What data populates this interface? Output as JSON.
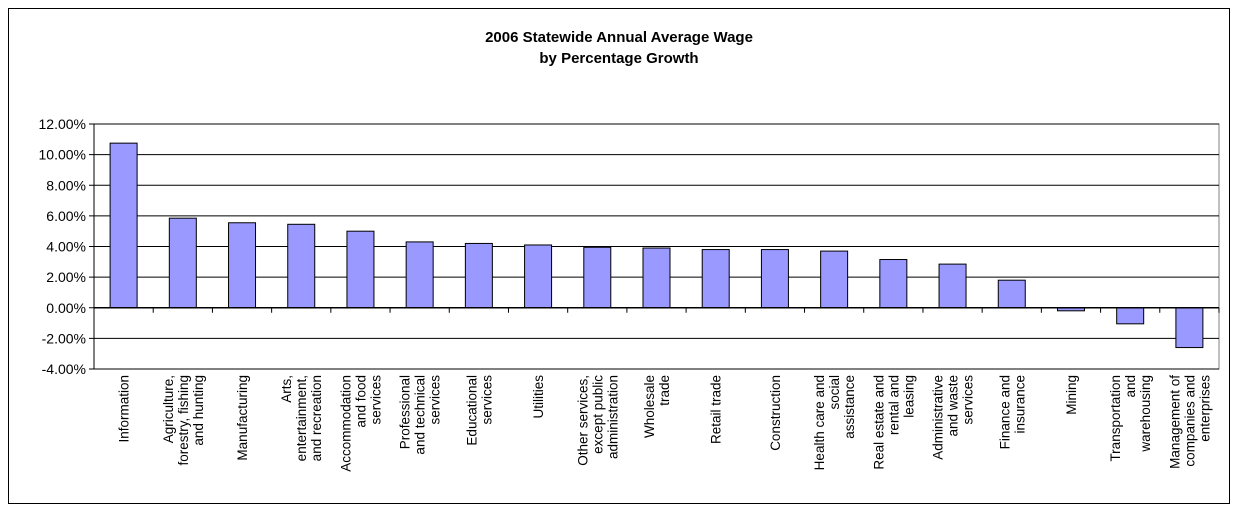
{
  "chart_data": {
    "type": "bar",
    "title": "2006 Statewide Annual Average Wage",
    "subtitle": "by Percentage Growth",
    "xlabel": "",
    "ylabel": "",
    "ylim": [
      -4,
      12
    ],
    "y_ticks": [
      "12.00%",
      "10.00%",
      "8.00%",
      "6.00%",
      "4.00%",
      "2.00%",
      "0.00%",
      "-2.00%",
      "-4.00%"
    ],
    "y_tick_values": [
      12,
      10,
      8,
      6,
      4,
      2,
      0,
      -2,
      -4
    ],
    "grid": true,
    "legend": "none",
    "bar_color": "#9999ff",
    "categories": [
      "Information",
      "Agriculture, forestry, fishing and hunting",
      "Manufacturing",
      "Arts, entertainment, and recreation",
      "Accommodation and food services",
      "Professional and technical services",
      "Educational services",
      "Utilities",
      "Other services, except public administration",
      "Wholesale trade",
      "Retail trade",
      "Construction",
      "Health care and social assistance",
      "Real estate and rental and leasing",
      "Administrative and waste services",
      "Finance and insurance",
      "Mining",
      "Transportation and warehousing",
      "Management of companies and enterprises"
    ],
    "category_lines": [
      [
        "Information"
      ],
      [
        "Agriculture,",
        "forestry, fishing",
        "and hunting"
      ],
      [
        "Manufacturing"
      ],
      [
        "Arts,",
        "entertainment,",
        "and recreation"
      ],
      [
        "Accommodation",
        "and food",
        "services"
      ],
      [
        "Professional",
        "and technical",
        "services"
      ],
      [
        "Educational",
        "services"
      ],
      [
        "Utilities"
      ],
      [
        "Other services,",
        "except public",
        "administration"
      ],
      [
        "Wholesale",
        "trade"
      ],
      [
        "Retail trade"
      ],
      [
        "Construction"
      ],
      [
        "Health care and",
        "social",
        "assistance"
      ],
      [
        "Real estate and",
        "rental and",
        "leasing"
      ],
      [
        "Administrative",
        "and waste",
        "services"
      ],
      [
        "Finance and",
        "insurance"
      ],
      [
        "Mining"
      ],
      [
        "Transportation",
        "and",
        "warehousing"
      ],
      [
        "Management of",
        "companies and",
        "enterprises"
      ]
    ],
    "values": [
      10.75,
      5.85,
      5.55,
      5.45,
      5.0,
      4.3,
      4.2,
      4.1,
      3.95,
      3.9,
      3.8,
      3.8,
      3.7,
      3.15,
      2.85,
      1.8,
      -0.2,
      -1.05,
      -2.6
    ]
  }
}
